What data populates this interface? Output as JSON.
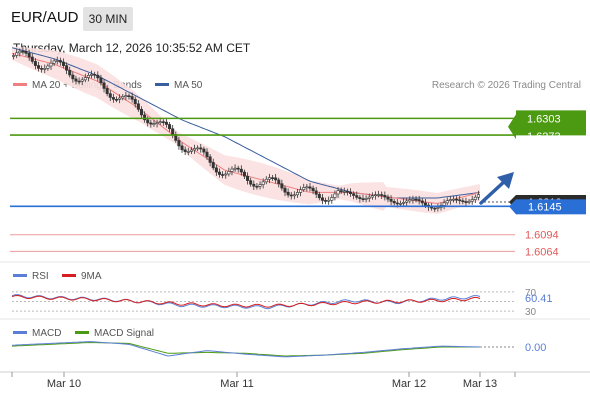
{
  "header": {
    "pair": "EUR/AUD",
    "timeframe": "30 MIN",
    "datetime": "Thursday, March 12, 2026 10:35:52 AM CET"
  },
  "legend": {
    "ma20": "MA 20 + Bollinger Bands",
    "ma50": "MA 50",
    "credit": "Research © 2026 Trading Central",
    "rsi": "RSI",
    "rsi_ma": "9MA",
    "macd": "MACD",
    "macd_signal": "MACD Signal"
  },
  "colors": {
    "ma20": "#f08080",
    "ma50": "#3a5f9e",
    "band_fill": "#fbe0e0",
    "resistance": "#4c9a12",
    "support": "#2a6fd6",
    "target": "#e05a5a",
    "current_box": "#2b2b2b",
    "rsi": "#5b7fd6",
    "rsi_ma": "#d62020",
    "macd": "#5b7fd6",
    "macd_signal": "#4c9a12",
    "arrow": "#2f5fa8"
  },
  "chart_data": [
    {
      "type": "candlestick",
      "title": "EUR/AUD",
      "x_ticks": [
        "Mar 10",
        "Mar 11",
        "Mar 12",
        "Mar 13"
      ],
      "ylim": [
        1.6045,
        1.6345
      ],
      "current_price": "1.6210",
      "levels": [
        {
          "label": "1.6303",
          "value": 1.6303,
          "kind": "resistance"
        },
        {
          "label": "1.6273",
          "value": 1.6273,
          "kind": "resistance"
        },
        {
          "label": "1.6145",
          "value": 1.6145,
          "kind": "pivot"
        },
        {
          "label": "1.6094",
          "value": 1.6094,
          "kind": "target"
        },
        {
          "label": "1.6064",
          "value": 1.6064,
          "kind": "target"
        }
      ],
      "series": [
        {
          "name": "MA 20 + Bollinger Bands",
          "approx_values": [
            1.642,
            1.64,
            1.637,
            1.632,
            1.626,
            1.621,
            1.619,
            1.617,
            1.617,
            1.616,
            1.615,
            1.617
          ]
        },
        {
          "name": "MA 50",
          "approx_values": [
            1.643,
            1.641,
            1.638,
            1.634,
            1.63,
            1.627,
            1.623,
            1.619,
            1.617,
            1.616,
            1.616,
            1.617
          ]
        }
      ]
    },
    {
      "type": "line",
      "title": "RSI",
      "ylim": [
        20,
        80
      ],
      "y_ticks": [
        "70",
        "30"
      ],
      "current_label": "60.41",
      "series": [
        {
          "name": "RSI",
          "approx_values": [
            62,
            58,
            55,
            50,
            42,
            40,
            38,
            45,
            52,
            48,
            55,
            60
          ]
        },
        {
          "name": "9MA",
          "approx_values": [
            60,
            57,
            54,
            50,
            45,
            42,
            41,
            44,
            48,
            50,
            52,
            56
          ]
        }
      ]
    },
    {
      "type": "line",
      "title": "MACD",
      "current_label": "0.00",
      "series": [
        {
          "name": "MACD",
          "approx_values": [
            0.0002,
            0.0004,
            0.0006,
            0.0003,
            -0.001,
            -0.0004,
            -0.0008,
            -0.0011,
            -0.0009,
            -0.0006,
            -0.0002,
            0.0001,
            0.0
          ]
        },
        {
          "name": "MACD Signal",
          "approx_values": [
            0.0001,
            0.0003,
            0.0005,
            0.0004,
            -0.0007,
            -0.0006,
            -0.0007,
            -0.001,
            -0.0009,
            -0.0007,
            -0.0003,
            0.0,
            0.0
          ]
        }
      ]
    }
  ]
}
